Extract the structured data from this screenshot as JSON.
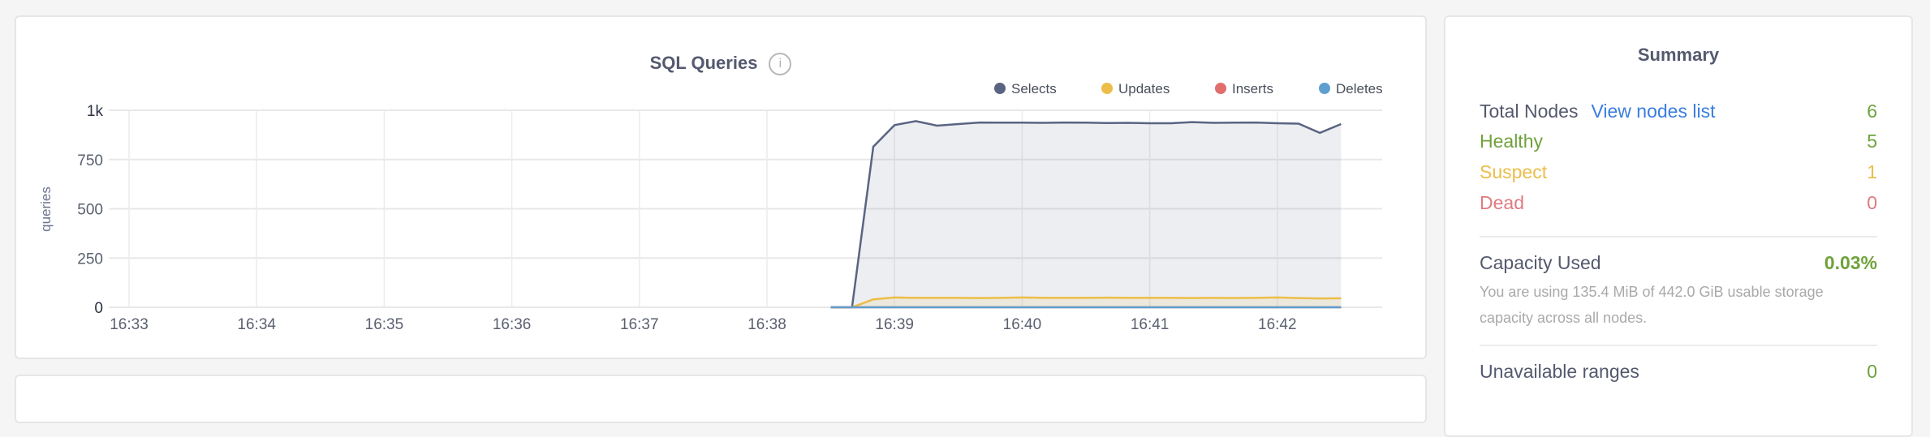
{
  "chart": {
    "title": "SQL Queries",
    "info_icon": "info-circle-icon"
  },
  "chart_data": {
    "type": "area",
    "title": "SQL Queries",
    "ylabel": "queries",
    "xlabel": "",
    "ylim": [
      0,
      1000
    ],
    "yticks": [
      0,
      250,
      500,
      750,
      1000
    ],
    "ytick_labels": [
      "0",
      "250",
      "500",
      "750",
      "1k"
    ],
    "xlim": [
      "16:32:50",
      "16:43:20"
    ],
    "xtick_labels": [
      "16:33",
      "16:34",
      "16:35",
      "16:36",
      "16:37",
      "16:38",
      "16:39",
      "16:40",
      "16:41",
      "16:42"
    ],
    "grid": true,
    "legend_position": "top-right",
    "x": [
      "16:38:30",
      "16:38:40",
      "16:38:50",
      "16:39:00",
      "16:39:10",
      "16:39:20",
      "16:39:30",
      "16:39:40",
      "16:39:50",
      "16:40:00",
      "16:40:10",
      "16:40:20",
      "16:40:30",
      "16:40:40",
      "16:40:50",
      "16:41:00",
      "16:41:10",
      "16:41:20",
      "16:41:30",
      "16:41:40",
      "16:41:50",
      "16:42:00",
      "16:42:10",
      "16:42:20",
      "16:42:30"
    ],
    "series": [
      {
        "name": "Selects",
        "color": "#5a6482",
        "values": [
          0,
          0,
          815,
          925,
          945,
          922,
          930,
          938,
          937,
          937,
          936,
          938,
          937,
          935,
          936,
          934,
          934,
          940,
          936,
          937,
          938,
          934,
          932,
          885,
          930
        ]
      },
      {
        "name": "Updates",
        "color": "#ecbd48",
        "values": [
          0,
          0,
          40,
          50,
          48,
          48,
          48,
          47,
          48,
          50,
          48,
          48,
          48,
          49,
          48,
          48,
          48,
          47,
          48,
          47,
          48,
          50,
          47,
          45,
          46
        ]
      },
      {
        "name": "Inserts",
        "color": "#e06e6c",
        "values": [
          0,
          0,
          0,
          0,
          0,
          0,
          0,
          0,
          0,
          0,
          0,
          0,
          0,
          0,
          0,
          0,
          0,
          0,
          0,
          0,
          0,
          0,
          0,
          0,
          0
        ]
      },
      {
        "name": "Deletes",
        "color": "#5f9fd0",
        "values": [
          0,
          0,
          0,
          0,
          0,
          0,
          0,
          0,
          0,
          0,
          0,
          0,
          0,
          0,
          0,
          0,
          0,
          0,
          0,
          0,
          0,
          0,
          0,
          0,
          0
        ]
      }
    ]
  },
  "summary": {
    "title": "Summary",
    "total_nodes_label": "Total Nodes",
    "view_nodes_link": "View nodes list",
    "total_nodes_value": "6",
    "healthy_label": "Healthy",
    "healthy_value": "5",
    "suspect_label": "Suspect",
    "suspect_value": "1",
    "dead_label": "Dead",
    "dead_value": "0",
    "capacity_label": "Capacity Used",
    "capacity_value": "0.03%",
    "capacity_desc": "You are using 135.4 MiB of 442.0 GiB usable storage capacity across all nodes.",
    "unavailable_label": "Unavailable ranges",
    "unavailable_value": "0",
    "colors": {
      "text": "#54596e",
      "link": "#3a7de0",
      "healthy": "#6fa23b",
      "suspect": "#ecbd48",
      "dead": "#e07a80"
    }
  }
}
